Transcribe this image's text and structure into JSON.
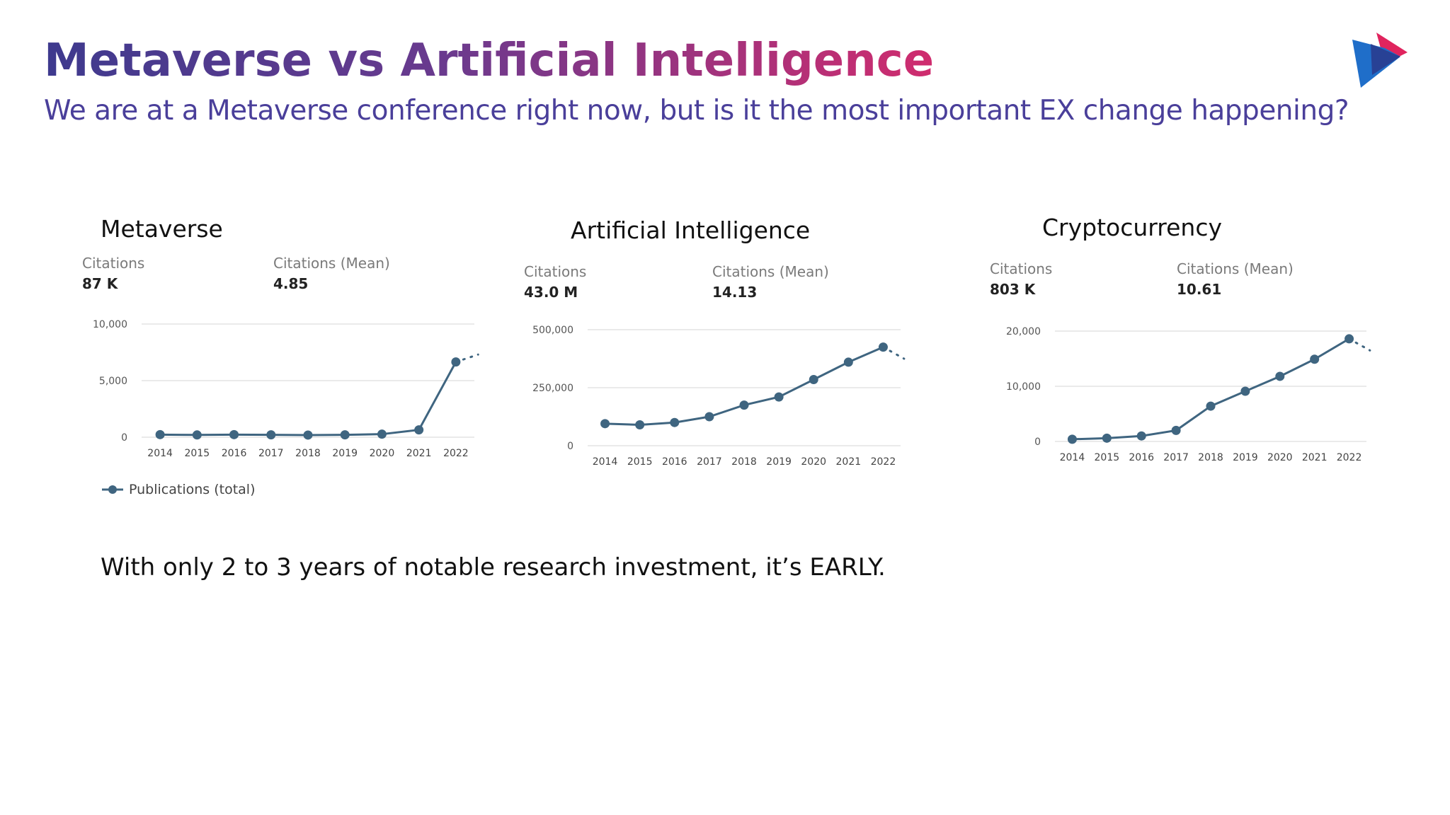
{
  "slide": {
    "title": "Metaverse vs Artificial Intelligence",
    "subtitle": "We are at a Metaverse conference right now, but is it the most important EX change happening?",
    "footnote": "With only 2 to 3 years of notable research investment, it’s EARLY.",
    "legend_label": "Publications (total)"
  },
  "colors": {
    "line": "#3f6580",
    "grid": "#e3e3e3",
    "logo_red": "#e0245e",
    "logo_blue": "#1f6ec9",
    "logo_navy": "#2a3a8c"
  },
  "panels": [
    {
      "title": "Metaverse",
      "citations_label": "Citations",
      "citations_value": "87 K",
      "mean_label": "Citations (Mean)",
      "mean_value": "4.85"
    },
    {
      "title": "Artificial Intelligence",
      "citations_label": "Citations",
      "citations_value": "43.0 M",
      "mean_label": "Citations (Mean)",
      "mean_value": "14.13"
    },
    {
      "title": "Cryptocurrency",
      "citations_label": "Citations",
      "citations_value": "803 K",
      "mean_label": "Citations (Mean)",
      "mean_value": "10.61"
    }
  ],
  "chart_data": [
    {
      "type": "line",
      "title": "Metaverse",
      "categories": [
        "2014",
        "2015",
        "2016",
        "2017",
        "2018",
        "2019",
        "2020",
        "2021",
        "2022"
      ],
      "series": [
        {
          "name": "Publications (total)",
          "values": [
            230,
            200,
            230,
            210,
            190,
            210,
            270,
            650,
            6650
          ],
          "projection": 7300
        }
      ],
      "ylim": [
        0,
        10000
      ],
      "yticks": [
        0,
        5000,
        10000
      ],
      "ytick_labels": [
        "0",
        "5,000",
        "10,000"
      ],
      "grid": true
    },
    {
      "type": "line",
      "title": "Artificial Intelligence",
      "categories": [
        "2014",
        "2015",
        "2016",
        "2017",
        "2018",
        "2019",
        "2020",
        "2021",
        "2022"
      ],
      "series": [
        {
          "name": "Publications (total)",
          "values": [
            95000,
            90000,
            100000,
            125000,
            175000,
            210000,
            285000,
            360000,
            425000
          ],
          "projection": 375000
        }
      ],
      "ylim": [
        0,
        500000
      ],
      "yticks": [
        0,
        250000,
        500000
      ],
      "ytick_labels": [
        "0",
        "250,000",
        "500,000"
      ],
      "grid": true
    },
    {
      "type": "line",
      "title": "Cryptocurrency",
      "categories": [
        "2014",
        "2015",
        "2016",
        "2017",
        "2018",
        "2019",
        "2020",
        "2021",
        "2022"
      ],
      "series": [
        {
          "name": "Publications (total)",
          "values": [
            400,
            600,
            1000,
            2000,
            6400,
            9100,
            11800,
            14900,
            18600
          ],
          "projection": 16500
        }
      ],
      "ylim": [
        0,
        20000
      ],
      "yticks": [
        0,
        10000,
        20000
      ],
      "ytick_labels": [
        "0",
        "10,000",
        "20,000"
      ],
      "grid": true
    }
  ]
}
